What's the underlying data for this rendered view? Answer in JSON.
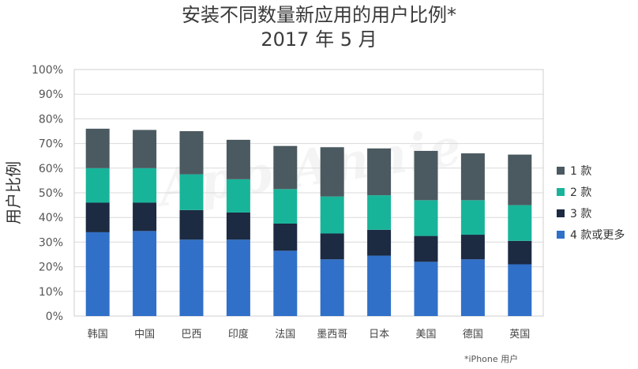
{
  "title": {
    "line1": "安装不同数量新应用的用户比例*",
    "line2": "2017 年 5 月"
  },
  "footnote": "*iPhone 用户",
  "watermark": "App Annie",
  "chart_data": {
    "type": "bar",
    "stacked": true,
    "title": "安装不同数量新应用的用户比例* 2017 年 5 月",
    "ylabel": "用户比例",
    "ylim": [
      0,
      100
    ],
    "yticks": [
      "0%",
      "10%",
      "20%",
      "30%",
      "40%",
      "50%",
      "60%",
      "70%",
      "80%",
      "90%",
      "100%"
    ],
    "categories": [
      "韩国",
      "中国",
      "巴西",
      "印度",
      "法国",
      "墨西哥",
      "日本",
      "美国",
      "德国",
      "英国"
    ],
    "series": [
      {
        "name": "4 款或更多",
        "color": "#3070c8",
        "values": [
          34,
          34.5,
          31,
          31,
          26.5,
          23,
          24.5,
          22,
          23,
          21
        ]
      },
      {
        "name": "3 款",
        "color": "#1c2a42",
        "values": [
          12,
          11.5,
          12,
          11,
          11,
          10.5,
          10.5,
          10.5,
          10,
          9.5
        ]
      },
      {
        "name": "2 款",
        "color": "#18b49a",
        "values": [
          14,
          14,
          14.5,
          13.5,
          14,
          15,
          14,
          14.5,
          14,
          14.5
        ]
      },
      {
        "name": "1 款",
        "color": "#4b5a60",
        "values": [
          16,
          15.5,
          17.5,
          16,
          17.5,
          20,
          19,
          20,
          19,
          20.5
        ]
      }
    ],
    "legend_order": [
      "1 款",
      "2 款",
      "3 款",
      "4 款或更多"
    ],
    "legend_position": "right",
    "grid": true
  }
}
